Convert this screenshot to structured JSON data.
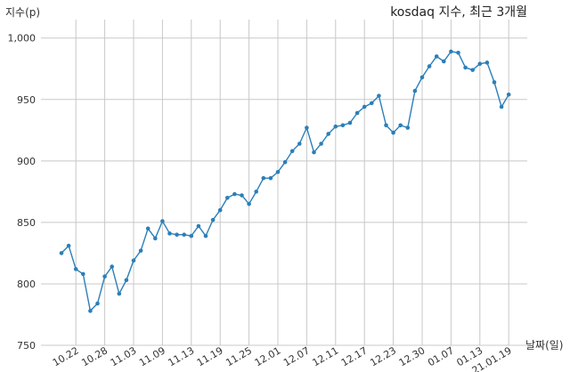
{
  "chart_data": {
    "type": "line",
    "title": "kosdaq 지수, 최근 3개월",
    "xlabel": "날짜(일)",
    "ylabel": "지수(p)",
    "ylim": [
      750,
      1015
    ],
    "yticks": [
      750,
      800,
      850,
      900,
      950,
      1000
    ],
    "ytick_labels": [
      "750",
      "800",
      "850",
      "900",
      "950",
      "1,000"
    ],
    "xtick_labels": [
      "10.22",
      "10.28",
      "11.03",
      "11.09",
      "11.13",
      "11.19",
      "11.25",
      "12.01",
      "12.07",
      "12.11",
      "12.17",
      "12.23",
      "12.30",
      "01.07",
      "01.13",
      "21.01.19"
    ],
    "xtick_index": [
      2,
      6,
      10,
      14,
      18,
      22,
      26,
      30,
      34,
      38,
      42,
      46,
      50,
      54,
      58,
      62
    ],
    "grid": true,
    "series": [
      {
        "values": [
          825,
          831,
          812,
          808,
          778,
          784,
          806,
          814,
          792,
          803,
          819,
          827,
          845,
          837,
          851,
          841,
          840,
          840,
          839,
          847,
          839,
          852,
          860,
          870,
          873,
          872,
          865,
          875,
          886,
          886,
          891,
          899,
          908,
          914,
          927,
          907,
          914,
          922,
          928,
          929,
          931,
          939,
          944,
          947,
          953,
          929,
          923,
          929,
          927,
          957,
          968,
          977,
          985,
          981,
          989,
          988,
          976,
          974,
          979,
          980,
          964,
          944,
          954
        ]
      }
    ]
  },
  "colors": {
    "series": "#2c7fb8",
    "grid": "#c8c8c8"
  }
}
